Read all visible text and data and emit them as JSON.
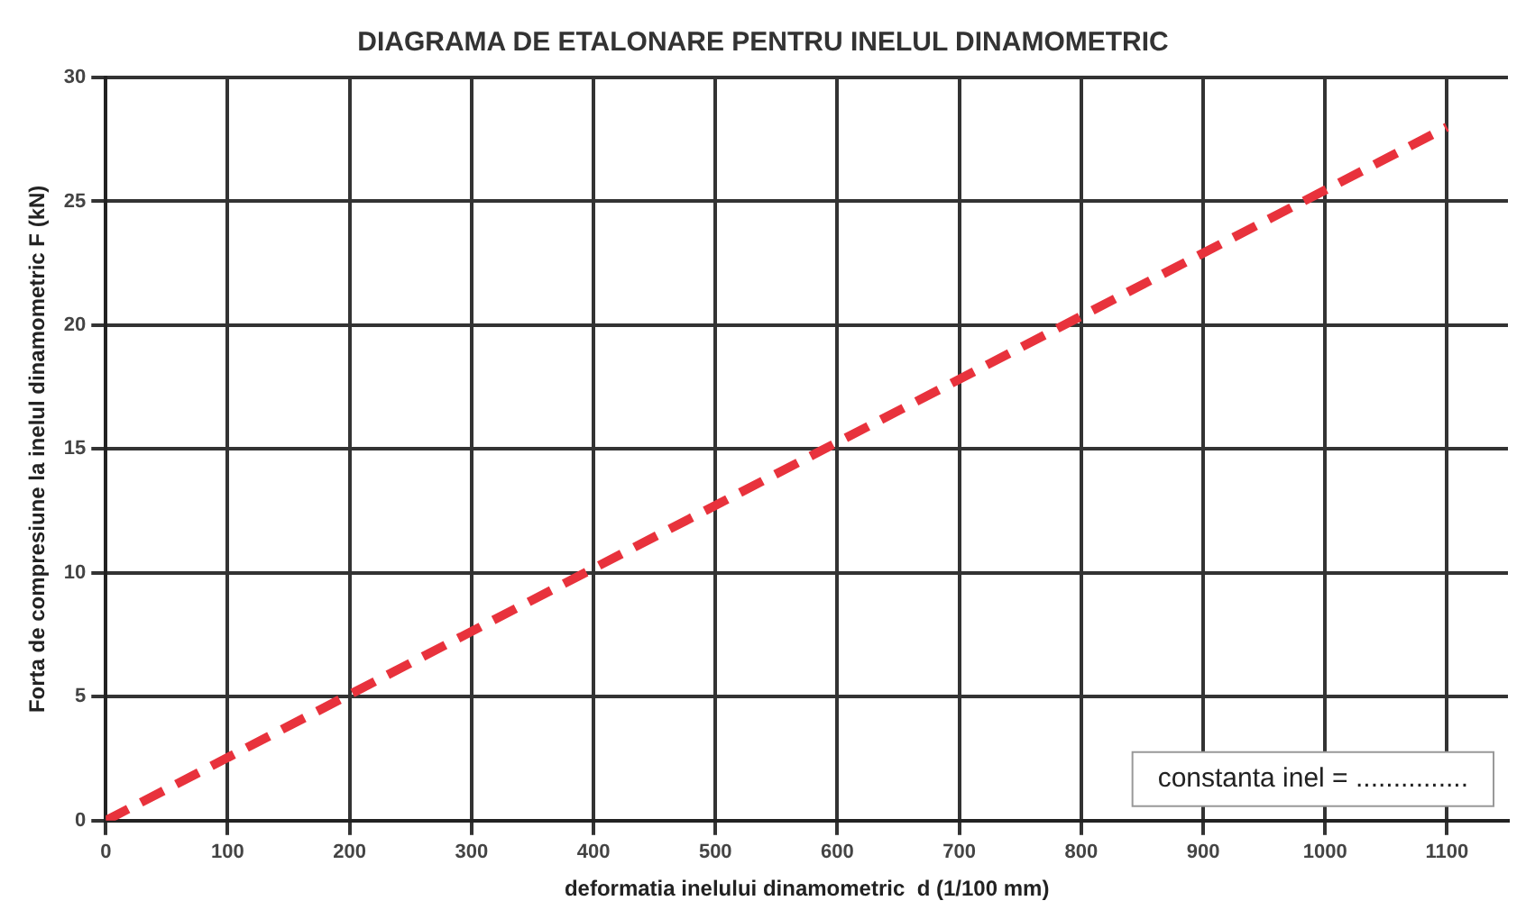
{
  "chart_data": {
    "type": "line",
    "title": "DIAGRAMA DE ETALONARE PENTRU INELUL DINAMOMETRIC",
    "xlabel": "deformatia inelului dinamometric  d (1/100 mm)",
    "ylabel": "Forta de compresiune la inelul dinamometric F (kN)",
    "x": [
      0,
      1100
    ],
    "series": [
      {
        "color": "#e8323c",
        "values": [
          0,
          28
        ]
      }
    ],
    "xlim": [
      0,
      1150
    ],
    "xticks": [
      0,
      100,
      200,
      300,
      400,
      500,
      600,
      700,
      800,
      900,
      1000,
      1100
    ],
    "ylim": [
      0,
      30
    ],
    "yticks": [
      0,
      5,
      10,
      15,
      20,
      25,
      30
    ],
    "grid": true,
    "legend": false,
    "marker": "none",
    "line_style": "dashed",
    "annotations": [
      "constanta inel = ..............."
    ]
  }
}
